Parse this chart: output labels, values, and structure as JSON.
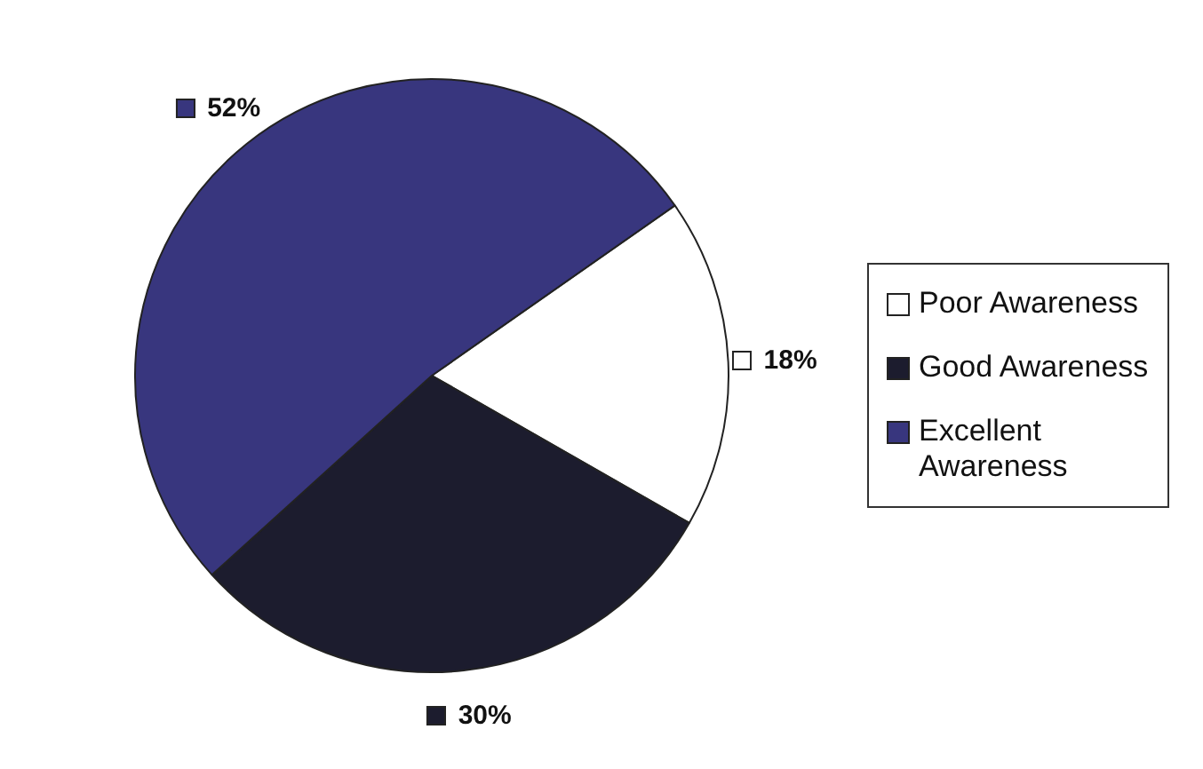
{
  "chart_data": {
    "type": "pie",
    "categories": [
      "Poor Awareness",
      "Good Awareness",
      "Excellent Awareness"
    ],
    "values": [
      18,
      30,
      52
    ],
    "colors": [
      "#ffffff",
      "#1c1c2e",
      "#38367e"
    ],
    "value_labels": [
      "18%",
      "30%",
      "52%"
    ],
    "legend": "right"
  }
}
